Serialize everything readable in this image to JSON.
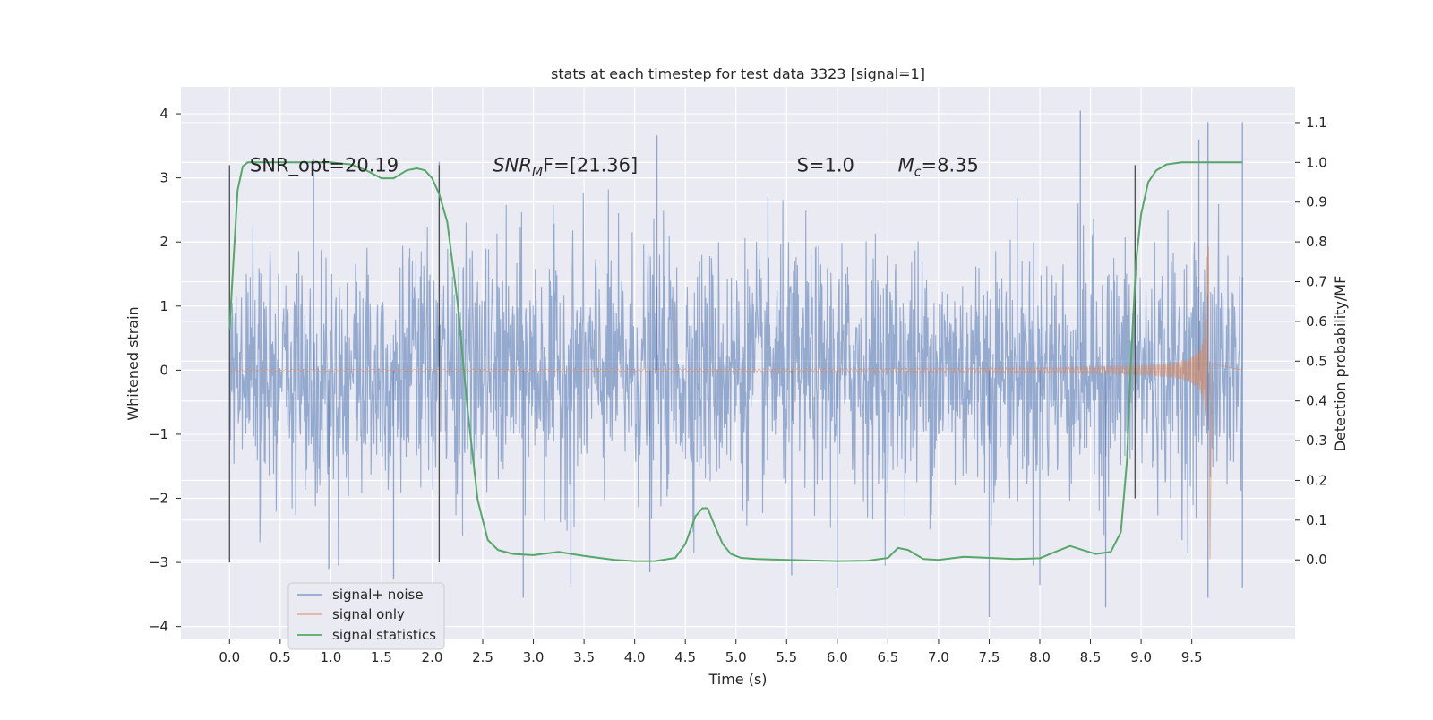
{
  "chart_data": {
    "type": "line",
    "title": "stats at each timestep for test data 3323 [signal=1]",
    "xlabel": "Time (s)",
    "ylabel": "Whitened strain",
    "ylabel_right": "Detection probability/MF",
    "xlim": [
      -0.48,
      10.52
    ],
    "ylim": [
      -4.2,
      4.42
    ],
    "ylim_right": [
      -0.2,
      1.19
    ],
    "x_ticks": [
      "0.0",
      "0.5",
      "1.0",
      "1.5",
      "2.0",
      "2.5",
      "3.0",
      "3.5",
      "4.0",
      "4.5",
      "5.0",
      "5.5",
      "6.0",
      "6.5",
      "7.0",
      "7.5",
      "8.0",
      "8.5",
      "9.0",
      "9.5"
    ],
    "y_ticks": [
      "−4",
      "−3",
      "−2",
      "−1",
      "0",
      "1",
      "2",
      "3",
      "4"
    ],
    "y_ticks_right": [
      "0.0",
      "0.1",
      "0.2",
      "0.3",
      "0.4",
      "0.5",
      "0.6",
      "0.7",
      "0.8",
      "0.9",
      "1.0",
      "1.1"
    ],
    "grid": true,
    "legend_position": "lower-left",
    "annotations": [
      {
        "text": "SNR_opt=20.19",
        "x": 0.2,
        "y": 3.1
      },
      {
        "text": "SNR",
        "sub": "M",
        "rest": "F=[21.36]",
        "x": 2.6,
        "y": 3.1
      },
      {
        "text": "S=1.0",
        "x": 5.6,
        "y": 3.1
      },
      {
        "text": "M",
        "sub": "c",
        "rest": "=8.35",
        "x": 6.6,
        "y": 3.1
      }
    ],
    "vlines": [
      {
        "x": 0.0,
        "y0": -3.0,
        "y1": 3.2
      },
      {
        "x": 2.07,
        "y0": -3.0,
        "y1": 3.2
      },
      {
        "x": 8.94,
        "y0": -2.0,
        "y1": 3.2
      }
    ],
    "series": [
      {
        "name": "signal+ noise",
        "color": "#4c72b0",
        "kind": "noise",
        "x_range": [
          0.0,
          10.0
        ],
        "envelope_sd": 0.95,
        "spikes": [
          [
            8.4,
            4.05
          ],
          [
            9.66,
            3.87
          ],
          [
            10.0,
            3.87
          ],
          [
            4.22,
            3.66
          ],
          [
            9.57,
            3.6
          ],
          [
            0.83,
            3.3
          ],
          [
            2.07,
            3.25
          ],
          [
            3.37,
            -3.37
          ],
          [
            5.55,
            -3.2
          ],
          [
            6.0,
            -3.4
          ],
          [
            7.5,
            -3.85
          ],
          [
            8.0,
            -3.35
          ],
          [
            8.65,
            -3.7
          ],
          [
            0.98,
            -3.1
          ],
          [
            2.9,
            -3.55
          ],
          [
            9.66,
            -3.55
          ],
          [
            1.62,
            -3.25
          ],
          [
            4.15,
            -3.15
          ],
          [
            10.0,
            -3.4
          ]
        ]
      },
      {
        "name": "signal only",
        "color": "#dd8452",
        "kind": "chirp",
        "x_range": [
          0.0,
          9.66
        ],
        "merger_time": 9.66,
        "peak_amplitude": 2.0
      },
      {
        "name": "signal statistics",
        "color": "#55a868",
        "axis": "right",
        "x": [
          0.0,
          0.05,
          0.08,
          0.13,
          0.18,
          0.3,
          0.5,
          0.8,
          1.0,
          1.2,
          1.35,
          1.5,
          1.62,
          1.75,
          1.85,
          1.93,
          2.0,
          2.07,
          2.15,
          2.25,
          2.35,
          2.45,
          2.55,
          2.65,
          2.8,
          3.0,
          3.25,
          3.5,
          3.8,
          4.0,
          4.2,
          4.4,
          4.5,
          4.6,
          4.67,
          4.72,
          4.8,
          4.87,
          4.95,
          5.05,
          5.2,
          5.5,
          6.0,
          6.3,
          6.5,
          6.6,
          6.7,
          6.85,
          7.0,
          7.25,
          7.5,
          7.75,
          8.0,
          8.15,
          8.3,
          8.42,
          8.55,
          8.7,
          8.8,
          8.86,
          8.9,
          8.95,
          9.0,
          9.07,
          9.15,
          9.25,
          9.4,
          9.6,
          9.8,
          10.0
        ],
        "y": [
          0.58,
          0.8,
          0.93,
          0.99,
          1.0,
          1.0,
          1.0,
          1.0,
          1.0,
          0.995,
          0.98,
          0.96,
          0.96,
          0.98,
          0.985,
          0.98,
          0.96,
          0.92,
          0.85,
          0.65,
          0.38,
          0.15,
          0.05,
          0.025,
          0.015,
          0.012,
          0.02,
          0.01,
          0.0,
          -0.003,
          -0.003,
          0.005,
          0.04,
          0.11,
          0.13,
          0.13,
          0.08,
          0.04,
          0.015,
          0.005,
          0.002,
          0.0,
          -0.003,
          -0.002,
          0.005,
          0.03,
          0.025,
          0.002,
          0.0,
          0.008,
          0.005,
          0.002,
          0.004,
          0.02,
          0.035,
          0.025,
          0.015,
          0.02,
          0.07,
          0.25,
          0.5,
          0.75,
          0.87,
          0.95,
          0.98,
          0.995,
          1.0,
          1.0,
          1.0,
          1.0
        ]
      }
    ]
  }
}
